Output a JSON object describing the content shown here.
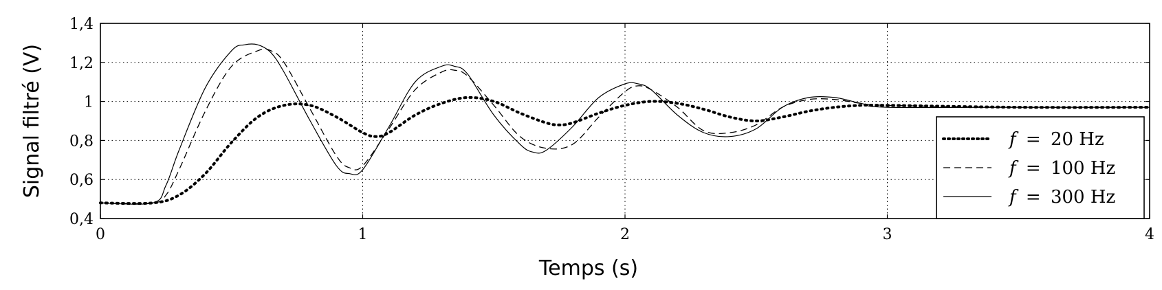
{
  "chart_data": {
    "type": "line",
    "xlabel": "Temps (s)",
    "ylabel": "Signal filtré (V)",
    "xlim": [
      0,
      4
    ],
    "ylim": [
      0.4,
      1.4
    ],
    "x_ticks": [
      "0",
      "1",
      "2",
      "3",
      "4"
    ],
    "y_ticks": [
      "0,4",
      "0,6",
      "0,8",
      "1",
      "1,2",
      "1,4"
    ],
    "grid": true,
    "legend_position": "lower-right",
    "series": [
      {
        "label_var": "f",
        "label_eq": "=",
        "label_value": "20 Hz",
        "style": "dotted",
        "x": [
          0,
          0.2,
          0.3,
          0.4,
          0.5,
          0.6,
          0.7,
          0.8,
          0.9,
          1.0,
          1.05,
          1.1,
          1.2,
          1.3,
          1.4,
          1.5,
          1.6,
          1.7,
          1.75,
          1.8,
          1.9,
          2.0,
          2.1,
          2.2,
          2.3,
          2.4,
          2.5,
          2.6,
          2.7,
          2.8,
          2.9,
          3.0,
          3.5,
          4.0
        ],
        "y": [
          0.48,
          0.48,
          0.52,
          0.63,
          0.79,
          0.92,
          0.98,
          0.98,
          0.92,
          0.84,
          0.82,
          0.84,
          0.93,
          0.99,
          1.02,
          1.0,
          0.94,
          0.89,
          0.88,
          0.89,
          0.94,
          0.98,
          1.0,
          0.99,
          0.96,
          0.92,
          0.9,
          0.92,
          0.95,
          0.97,
          0.98,
          0.98,
          0.97,
          0.97
        ]
      },
      {
        "label_var": "f",
        "label_eq": "=",
        "label_value": "100 Hz",
        "style": "dashed",
        "x": [
          0,
          0.2,
          0.25,
          0.3,
          0.4,
          0.5,
          0.6,
          0.65,
          0.7,
          0.8,
          0.9,
          0.95,
          1.0,
          1.1,
          1.2,
          1.3,
          1.35,
          1.4,
          1.5,
          1.6,
          1.7,
          1.8,
          1.9,
          2.0,
          2.05,
          2.1,
          2.2,
          2.3,
          2.4,
          2.5,
          2.6,
          2.7,
          2.8,
          2.9,
          3.0,
          3.5,
          4.0
        ],
        "y": [
          0.48,
          0.48,
          0.52,
          0.65,
          0.95,
          1.18,
          1.26,
          1.26,
          1.2,
          0.96,
          0.72,
          0.66,
          0.67,
          0.86,
          1.06,
          1.15,
          1.16,
          1.13,
          0.98,
          0.82,
          0.76,
          0.78,
          0.92,
          1.05,
          1.08,
          1.06,
          0.97,
          0.85,
          0.84,
          0.88,
          0.97,
          1.01,
          1.01,
          0.99,
          0.98,
          0.97,
          0.97
        ]
      },
      {
        "label_var": "f",
        "label_eq": "=",
        "label_value": "300 Hz",
        "style": "solid",
        "x": [
          0,
          0.2,
          0.25,
          0.3,
          0.4,
          0.5,
          0.55,
          0.6,
          0.65,
          0.7,
          0.8,
          0.9,
          0.95,
          1.0,
          1.1,
          1.2,
          1.3,
          1.35,
          1.4,
          1.5,
          1.6,
          1.65,
          1.7,
          1.8,
          1.9,
          2.0,
          2.05,
          2.1,
          2.2,
          2.3,
          2.4,
          2.5,
          2.6,
          2.7,
          2.8,
          2.9,
          3.0,
          3.5,
          4.0
        ],
        "y": [
          0.48,
          0.48,
          0.57,
          0.75,
          1.07,
          1.26,
          1.29,
          1.29,
          1.25,
          1.15,
          0.9,
          0.67,
          0.63,
          0.65,
          0.87,
          1.1,
          1.18,
          1.18,
          1.14,
          0.93,
          0.78,
          0.74,
          0.75,
          0.87,
          1.02,
          1.09,
          1.09,
          1.06,
          0.93,
          0.84,
          0.82,
          0.86,
          0.97,
          1.02,
          1.02,
          0.99,
          0.97,
          0.97,
          0.97
        ]
      }
    ]
  }
}
